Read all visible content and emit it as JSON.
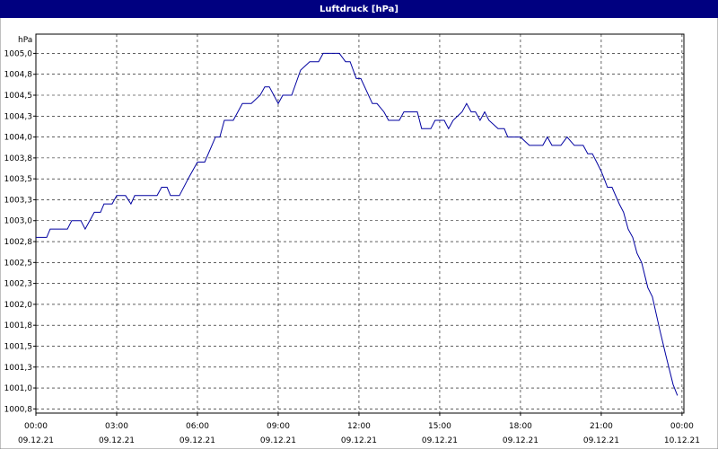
{
  "chart_data": {
    "type": "line",
    "title": "Luftdruck [hPa]",
    "y_unit": "hPa",
    "xlim": [
      0,
      24.07
    ],
    "ylim": [
      1000.7,
      1005.23
    ],
    "xticks": [
      {
        "value": 0,
        "label": "00:00",
        "date": "09.12.21"
      },
      {
        "value": 3,
        "label": "03:00",
        "date": "09.12.21"
      },
      {
        "value": 6,
        "label": "06:00",
        "date": "09.12.21"
      },
      {
        "value": 9,
        "label": "09:00",
        "date": "09.12.21"
      },
      {
        "value": 12,
        "label": "12:00",
        "date": "09.12.21"
      },
      {
        "value": 15,
        "label": "15:00",
        "date": "09.12.21"
      },
      {
        "value": 18,
        "label": "18:00",
        "date": "09.12.21"
      },
      {
        "value": 21,
        "label": "21:00",
        "date": "09.12.21"
      },
      {
        "value": 24,
        "label": "00:00",
        "date": "10.12.21"
      }
    ],
    "yticks": [
      {
        "value": 1000.75,
        "label": "1000,8"
      },
      {
        "value": 1001,
        "label": "1001,0"
      },
      {
        "value": 1001.25,
        "label": "1001,3"
      },
      {
        "value": 1001.5,
        "label": "1001,5"
      },
      {
        "value": 1001.75,
        "label": "1001,8"
      },
      {
        "value": 1002,
        "label": "1002,0"
      },
      {
        "value": 1002.25,
        "label": "1002,3"
      },
      {
        "value": 1002.5,
        "label": "1002,5"
      },
      {
        "value": 1002.75,
        "label": "1002,8"
      },
      {
        "value": 1003,
        "label": "1003,0"
      },
      {
        "value": 1003.25,
        "label": "1003,3"
      },
      {
        "value": 1003.5,
        "label": "1003,5"
      },
      {
        "value": 1003.75,
        "label": "1003,8"
      },
      {
        "value": 1004,
        "label": "1004,0"
      },
      {
        "value": 1004.25,
        "label": "1004,3"
      },
      {
        "value": 1004.5,
        "label": "1004,5"
      },
      {
        "value": 1004.75,
        "label": "1004,8"
      },
      {
        "value": 1005,
        "label": "1005,0"
      }
    ],
    "grid": true,
    "color": "#0000a0",
    "x": [
      0,
      0.4,
      0.53,
      1.17,
      1.33,
      1.67,
      1.83,
      2,
      2.17,
      2.4,
      2.53,
      2.83,
      3,
      3.33,
      3.53,
      3.67,
      4.5,
      4.67,
      4.87,
      5,
      5.33,
      5.67,
      6,
      6.27,
      6.67,
      6.83,
      7,
      7.33,
      7.67,
      8,
      8.33,
      8.5,
      8.67,
      9,
      9.17,
      9.5,
      9.83,
      10.17,
      10.5,
      10.67,
      11.27,
      11.5,
      11.67,
      11.9,
      12.07,
      12.5,
      12.67,
      12.93,
      13.1,
      13.5,
      13.67,
      14.17,
      14.33,
      14.67,
      14.83,
      15.17,
      15.33,
      15.5,
      15.83,
      16,
      16.17,
      16.33,
      16.5,
      16.67,
      16.83,
      17.17,
      17.4,
      17.53,
      18,
      18.33,
      18.83,
      19,
      19.17,
      19.5,
      19.73,
      20,
      20.33,
      20.5,
      20.67,
      20.83,
      21,
      21.1,
      21.23,
      21.4,
      21.67,
      21.83,
      22,
      22.17,
      22.33,
      22.5,
      22.73,
      22.9,
      23.17,
      23.4,
      23.67,
      23.83
    ],
    "values": [
      1002.8,
      1002.8,
      1002.9,
      1002.9,
      1003.0,
      1003.0,
      1002.9,
      1003.0,
      1003.1,
      1003.1,
      1003.2,
      1003.2,
      1003.3,
      1003.3,
      1003.2,
      1003.3,
      1003.3,
      1003.4,
      1003.4,
      1003.3,
      1003.3,
      1003.51,
      1003.7,
      1003.7,
      1004.0,
      1004.0,
      1004.2,
      1004.2,
      1004.4,
      1004.4,
      1004.5,
      1004.6,
      1004.6,
      1004.4,
      1004.5,
      1004.5,
      1004.8,
      1004.9,
      1004.9,
      1005.0,
      1005.0,
      1004.9,
      1004.9,
      1004.7,
      1004.7,
      1004.4,
      1004.4,
      1004.3,
      1004.2,
      1004.2,
      1004.3,
      1004.3,
      1004.1,
      1004.1,
      1004.2,
      1004.2,
      1004.1,
      1004.2,
      1004.3,
      1004.4,
      1004.3,
      1004.3,
      1004.2,
      1004.3,
      1004.2,
      1004.1,
      1004.1,
      1004.0,
      1004.0,
      1003.9,
      1003.9,
      1004.0,
      1003.9,
      1003.9,
      1004.0,
      1003.9,
      1003.9,
      1003.8,
      1003.8,
      1003.7,
      1003.59,
      1003.51,
      1003.4,
      1003.4,
      1003.2,
      1003.1,
      1002.9,
      1002.8,
      1002.61,
      1002.5,
      1002.2,
      1002.09,
      1001.7,
      1001.39,
      1001.04,
      1000.91
    ]
  }
}
